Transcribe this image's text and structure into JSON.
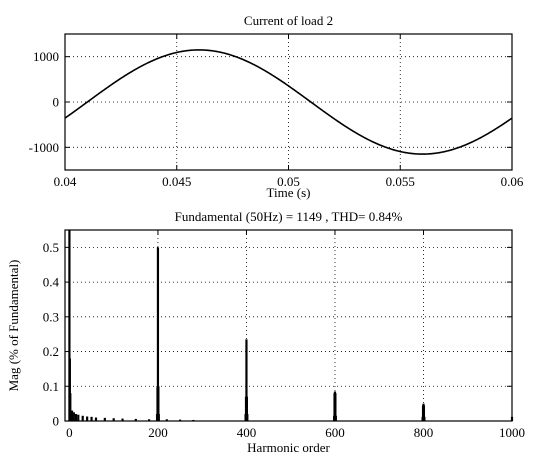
{
  "chart_data": [
    {
      "type": "line",
      "title": "Current of load 2",
      "xlabel": "Time (s)",
      "ylabel": "",
      "xlim": [
        0.04,
        0.06
      ],
      "ylim": [
        -1500,
        1500
      ],
      "xticks": [
        0.04,
        0.045,
        0.05,
        0.055,
        0.06
      ],
      "xtick_labels": [
        "0.04",
        "0.045",
        "0.05",
        "0.055",
        "0.06"
      ],
      "yticks": [
        -1000,
        0,
        1000
      ],
      "ytick_labels": [
        "-1000",
        "0",
        "1000"
      ],
      "grid": true,
      "series": [
        {
          "name": "",
          "amplitude": 1149,
          "frequency_hz": 50,
          "phase_deg": -18,
          "x": [
            0.04,
            0.042,
            0.044,
            0.046,
            0.048,
            0.05,
            0.052,
            0.054,
            0.056,
            0.058,
            0.06
          ],
          "y": [
            -355,
            355,
            930,
            1149,
            930,
            355,
            -355,
            -930,
            -1149,
            -930,
            -355
          ]
        }
      ]
    },
    {
      "type": "bar",
      "title": "Fundamental (50Hz) = 1149 , THD= 0.84%",
      "xlabel": "Harmonic order",
      "ylabel": "Mag (% of Fundamental)",
      "xlim": [
        -10,
        1000
      ],
      "ylim": [
        0,
        0.55
      ],
      "xticks": [
        0,
        200,
        400,
        600,
        800,
        1000
      ],
      "xtick_labels": [
        "0",
        "200",
        "400",
        "600",
        "800",
        "1000"
      ],
      "yticks": [
        0,
        0.1,
        0.2,
        0.3,
        0.4,
        0.5
      ],
      "ytick_labels": [
        "0",
        "0.1",
        "0.2",
        "0.3",
        "0.4",
        "0.5"
      ],
      "grid": true,
      "series": [
        {
          "name": "",
          "x": [
            0,
            1,
            2,
            3,
            4,
            5,
            6,
            8,
            10,
            15,
            20,
            30,
            40,
            50,
            60,
            80,
            100,
            120,
            150,
            180,
            198,
            199,
            200,
            201,
            202,
            220,
            250,
            280,
            398,
            399,
            400,
            401,
            402,
            598,
            599,
            600,
            601,
            602,
            798,
            799,
            800,
            801,
            802,
            1000
          ],
          "y": [
            0.55,
            0.18,
            0.08,
            0.03,
            0.02,
            0.025,
            0.03,
            0.02,
            0.025,
            0.02,
            0.018,
            0.015,
            0.013,
            0.012,
            0.01,
            0.009,
            0.008,
            0.007,
            0.006,
            0.005,
            0.02,
            0.1,
            0.5,
            0.1,
            0.02,
            0.005,
            0.004,
            0.003,
            0.02,
            0.07,
            0.235,
            0.07,
            0.02,
            0.015,
            0.08,
            0.085,
            0.08,
            0.015,
            0.012,
            0.045,
            0.05,
            0.045,
            0.012,
            0.012
          ]
        }
      ]
    }
  ]
}
